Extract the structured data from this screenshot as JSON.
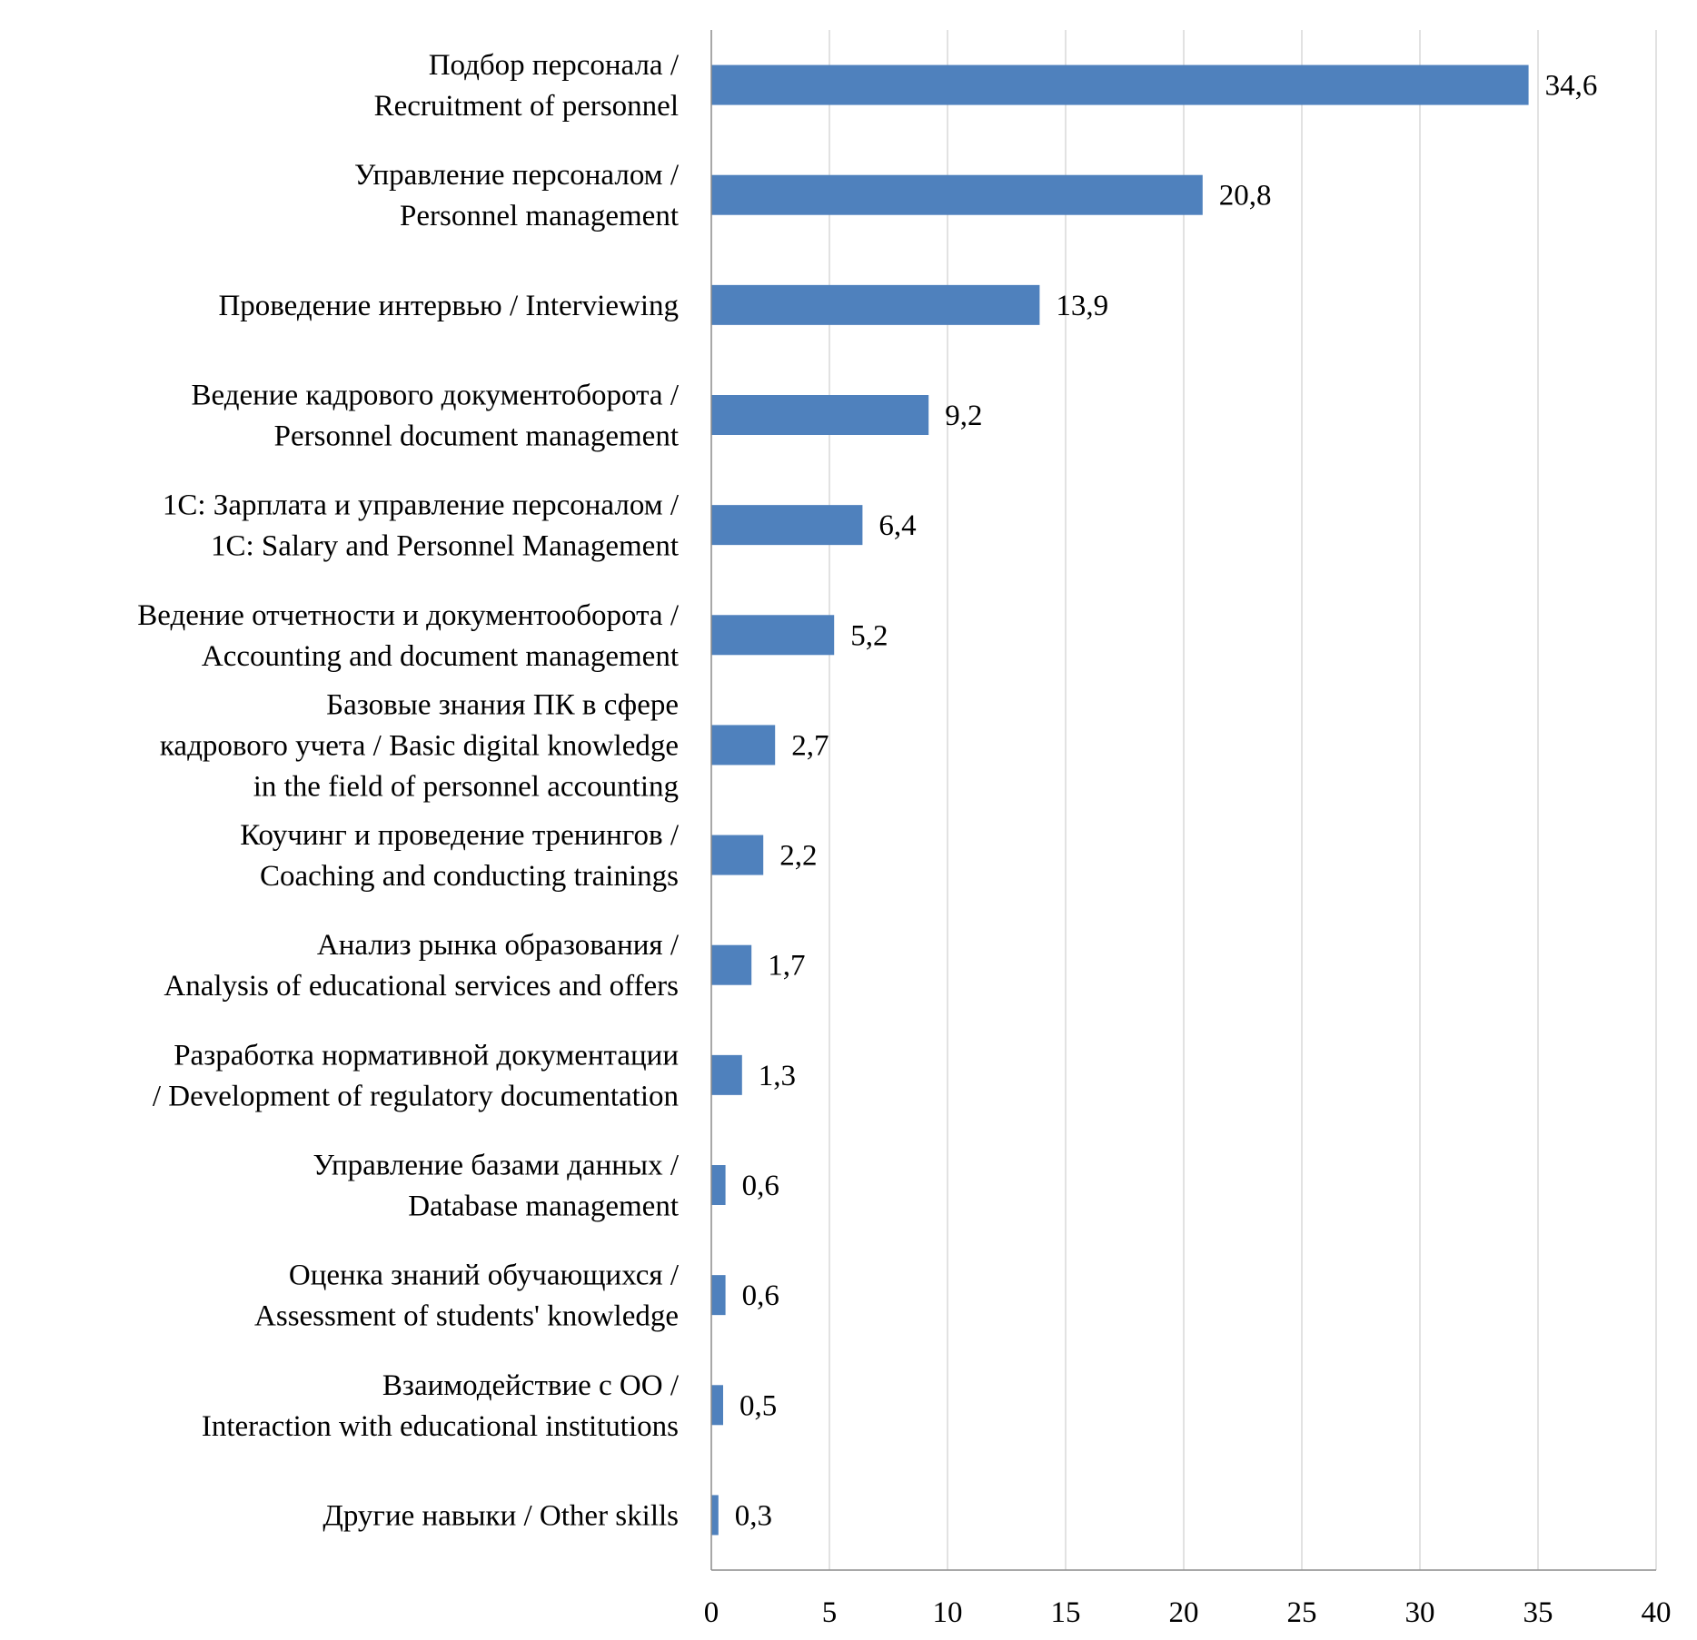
{
  "chart_data": {
    "type": "bar",
    "orientation": "horizontal",
    "title": "",
    "xlabel": "",
    "ylabel": "",
    "xlim": [
      0,
      40
    ],
    "x_ticks": [
      "0",
      "5",
      "10",
      "15",
      "20",
      "25",
      "30",
      "35",
      "40"
    ],
    "grid": true,
    "bar_color": "#4f81bd",
    "categories": [
      [
        "Подбор персонала /",
        "Recruitment of personnel"
      ],
      [
        "Управление персоналом /",
        "Personnel management"
      ],
      [
        "Проведение интервью / Interviewing"
      ],
      [
        "Ведение кадрового документоборота /",
        "Personnel document management"
      ],
      [
        "1С: Зарплата и управление персоналом /",
        "1C: Salary and Personnel Management"
      ],
      [
        "Ведение отчетности и документооборота /",
        "Accounting and document management"
      ],
      [
        "Базовые знания ПК в сфере",
        "кадрового учета / Basic digital knowledge",
        "in the field of personnel accounting"
      ],
      [
        "Коучинг и проведение тренингов /",
        "Coaching and conducting trainings"
      ],
      [
        "Анализ рынка образования /",
        "Analysis of educational services and offers"
      ],
      [
        "Разработка нормативной документации",
        "/ Development of regulatory documentation"
      ],
      [
        "Управление базами данных /",
        "Database management"
      ],
      [
        "Оценка знаний обучающихся /",
        "Assessment of students' knowledge"
      ],
      [
        "Взаимодействие с ОО /",
        "Interaction with educational institutions"
      ],
      [
        "Другие навыки / Other skills"
      ]
    ],
    "values": [
      34.6,
      20.8,
      13.9,
      9.2,
      6.4,
      5.2,
      2.7,
      2.2,
      1.7,
      1.3,
      0.6,
      0.6,
      0.5,
      0.3
    ],
    "value_labels": [
      "34,6",
      "20,8",
      "13,9",
      "9,2",
      "6,4",
      "5,2",
      "2,7",
      "2,2",
      "1,7",
      "1,3",
      "0,6",
      "0,6",
      "0,5",
      "0,3"
    ]
  }
}
